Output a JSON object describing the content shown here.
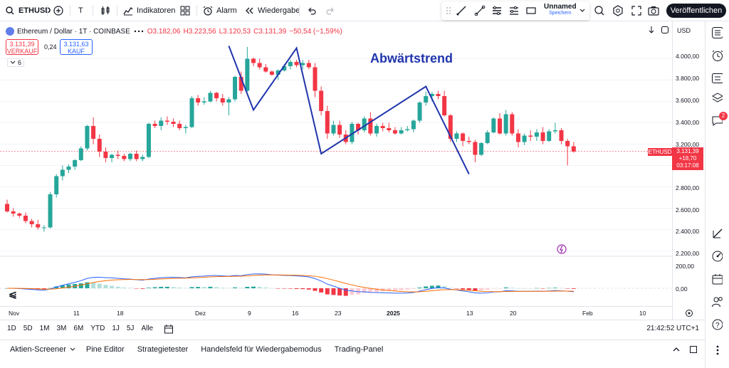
{
  "topbar": {
    "symbol": "ETHUSD",
    "interval": "T",
    "indicators": "Indikatoren",
    "alarm": "Alarm",
    "replay": "Wiedergabe",
    "layout_name": "Unnamed",
    "layout_status": "Speichern",
    "publish": "Veröffentlichen"
  },
  "legend": {
    "title": "Ethereum / Dollar · 1T · COINBASE",
    "o": "O3.182,06",
    "h": "H3.223,56",
    "l": "L3.120,53",
    "c": "C3.131,39",
    "chg": "−50,54 (−1,59%)",
    "sell_price": "3.131,39",
    "sell_label": "VERKAUF",
    "spread": "0,24",
    "buy_price": "3.131,63",
    "buy_label": "KAUF",
    "indicator_count": "6"
  },
  "annotation": "Abwärtstrend",
  "axis": {
    "currency": "USD",
    "price_labels": [
      "4.000,00",
      "3.800,00",
      "3.600,00",
      "3.400,00",
      "3.200,00",
      "2.800,00",
      "2.600,00",
      "2.400,00",
      "2.200,00",
      "200,00",
      "0,00"
    ],
    "time_labels": [
      "Nov",
      "11",
      "18",
      "Dez",
      "9",
      "16",
      "23",
      "2025",
      "13",
      "20",
      "Feb",
      "10"
    ],
    "current_symbol": "ETHUSD",
    "current_price": "3.131,39",
    "current_change": "+18,70",
    "countdown": "03:17:08"
  },
  "periods": [
    "1D",
    "5D",
    "1M",
    "3M",
    "6M",
    "YTD",
    "1J",
    "5J",
    "Alle"
  ],
  "clock": "21:42:52 UTC+1",
  "bottom_tabs": [
    "Aktien-Screener",
    "Pine Editor",
    "Strategietester",
    "Handelsfeld für Wiedergabemodus",
    "Trading-Panel"
  ],
  "notifications": "2",
  "colors": {
    "up": "#26a69a",
    "down": "#f23645",
    "trend": "#2135ad",
    "macd": "#2962ff",
    "signal": "#ff6d00"
  },
  "chart_data": {
    "type": "candlestick",
    "ylim": [
      2150,
      4150
    ],
    "candles": [
      [
        2640,
        2680,
        2560,
        2570
      ],
      [
        2570,
        2600,
        2520,
        2550
      ],
      [
        2550,
        2560,
        2510,
        2530
      ],
      [
        2530,
        2560,
        2460,
        2480
      ],
      [
        2480,
        2500,
        2420,
        2450
      ],
      [
        2450,
        2490,
        2400,
        2420
      ],
      [
        2420,
        2440,
        2380,
        2420
      ],
      [
        2420,
        2750,
        2410,
        2730
      ],
      [
        2730,
        2920,
        2700,
        2900
      ],
      [
        2900,
        3000,
        2860,
        2960
      ],
      [
        2960,
        3010,
        2930,
        2990
      ],
      [
        2990,
        3060,
        2960,
        3050
      ],
      [
        3050,
        3180,
        3040,
        3160
      ],
      [
        3160,
        3380,
        3140,
        3370
      ],
      [
        3370,
        3450,
        3200,
        3250
      ],
      [
        3250,
        3290,
        3080,
        3130
      ],
      [
        3130,
        3170,
        3030,
        3070
      ],
      [
        3070,
        3110,
        3030,
        3100
      ],
      [
        3100,
        3140,
        3060,
        3090
      ],
      [
        3090,
        3110,
        3040,
        3060
      ],
      [
        3060,
        3120,
        3040,
        3110
      ],
      [
        3110,
        3140,
        3040,
        3060
      ],
      [
        3060,
        3100,
        3040,
        3080
      ],
      [
        3080,
        3400,
        3070,
        3390
      ],
      [
        3390,
        3420,
        3350,
        3370
      ],
      [
        3370,
        3450,
        3330,
        3420
      ],
      [
        3420,
        3460,
        3380,
        3410
      ],
      [
        3410,
        3440,
        3360,
        3390
      ],
      [
        3390,
        3420,
        3330,
        3350
      ],
      [
        3350,
        3380,
        3300,
        3360
      ],
      [
        3360,
        3650,
        3350,
        3630
      ],
      [
        3630,
        3660,
        3560,
        3590
      ],
      [
        3590,
        3640,
        3570,
        3600
      ],
      [
        3600,
        3700,
        3590,
        3680
      ],
      [
        3680,
        3690,
        3600,
        3630
      ],
      [
        3630,
        3670,
        3560,
        3590
      ],
      [
        3590,
        3640,
        3470,
        3620
      ],
      [
        3620,
        3840,
        3600,
        3830
      ],
      [
        3830,
        3880,
        3670,
        3700
      ],
      [
        3700,
        4110,
        3690,
        4000
      ],
      [
        4000,
        4010,
        3930,
        3960
      ],
      [
        3960,
        4000,
        3900,
        3920
      ],
      [
        3920,
        3950,
        3870,
        3880
      ],
      [
        3880,
        3890,
        3840,
        3850
      ],
      [
        3850,
        3900,
        3800,
        3890
      ],
      [
        3890,
        3950,
        3880,
        3930
      ],
      [
        3930,
        3990,
        3900,
        3970
      ],
      [
        3970,
        3990,
        3920,
        3940
      ],
      [
        3940,
        3990,
        3900,
        3960
      ],
      [
        3960,
        3990,
        3900,
        3920
      ],
      [
        3920,
        3960,
        3640,
        3700
      ],
      [
        3700,
        3740,
        3470,
        3510
      ],
      [
        3510,
        3560,
        3250,
        3300
      ],
      [
        3300,
        3420,
        3280,
        3380
      ],
      [
        3380,
        3420,
        3260,
        3290
      ],
      [
        3290,
        3330,
        3200,
        3220
      ],
      [
        3220,
        3410,
        3200,
        3390
      ],
      [
        3390,
        3400,
        3290,
        3330
      ],
      [
        3330,
        3460,
        3310,
        3440
      ],
      [
        3440,
        3500,
        3280,
        3300
      ],
      [
        3300,
        3390,
        3270,
        3370
      ],
      [
        3370,
        3400,
        3320,
        3350
      ],
      [
        3350,
        3400,
        3310,
        3330
      ],
      [
        3330,
        3360,
        3290,
        3300
      ],
      [
        3300,
        3360,
        3290,
        3330
      ],
      [
        3330,
        3370,
        3320,
        3340
      ],
      [
        3340,
        3430,
        3310,
        3420
      ],
      [
        3420,
        3600,
        3400,
        3590
      ],
      [
        3590,
        3690,
        3560,
        3650
      ],
      [
        3650,
        3690,
        3600,
        3670
      ],
      [
        3670,
        3700,
        3620,
        3650
      ],
      [
        3650,
        3700,
        3460,
        3470
      ],
      [
        3470,
        3480,
        3220,
        3250
      ],
      [
        3250,
        3320,
        3220,
        3300
      ],
      [
        3300,
        3310,
        3180,
        3230
      ],
      [
        3230,
        3270,
        3200,
        3220
      ],
      [
        3220,
        3240,
        3030,
        3100
      ],
      [
        3100,
        3220,
        3090,
        3210
      ],
      [
        3210,
        3330,
        3200,
        3310
      ],
      [
        3310,
        3450,
        3300,
        3440
      ],
      [
        3440,
        3490,
        3290,
        3300
      ],
      [
        3300,
        3520,
        3280,
        3480
      ],
      [
        3480,
        3500,
        3280,
        3300
      ],
      [
        3300,
        3340,
        3170,
        3220
      ],
      [
        3220,
        3300,
        3190,
        3280
      ],
      [
        3280,
        3330,
        3230,
        3270
      ],
      [
        3270,
        3340,
        3230,
        3310
      ],
      [
        3310,
        3360,
        3200,
        3230
      ],
      [
        3230,
        3340,
        3220,
        3320
      ],
      [
        3320,
        3400,
        3300,
        3330
      ],
      [
        3330,
        3350,
        3200,
        3230
      ],
      [
        3230,
        3250,
        3000,
        3180
      ],
      [
        3180,
        3220,
        3120,
        3131
      ]
    ],
    "trend_lines": [
      [
        [
          3,
          4120
        ],
        [
          2,
          3530
        ],
        [
          4,
          4100
        ],
        [
          7,
          3100
        ],
        [
          10,
          3740
        ],
        [
          15,
          2910
        ]
      ]
    ]
  }
}
